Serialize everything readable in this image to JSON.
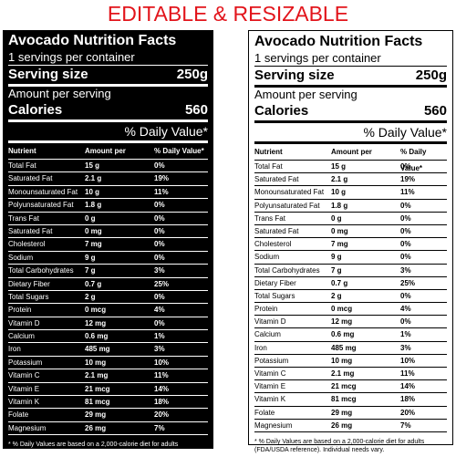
{
  "header": {
    "title": "EDITABLE & RESIZABLE"
  },
  "label": {
    "title": "Avocado Nutrition Facts",
    "servings": "1 servings per container",
    "serving_size_label": "Serving size",
    "serving_size": "250g",
    "amount_per": "Amount per serving",
    "calories_label": "Calories",
    "calories": "560",
    "daily_value": "% Daily Value*",
    "columns": [
      "Nutrient",
      "Amount per",
      "% Daily Value*"
    ],
    "rows": [
      [
        "Total Fat",
        "15 g",
        "0%"
      ],
      [
        "Saturated Fat",
        "2.1 g",
        "19%"
      ],
      [
        "Monounsaturated Fat",
        "10 g",
        "11%"
      ],
      [
        "Polyunsaturated Fat",
        "1.8 g",
        "0%"
      ],
      [
        "Trans Fat",
        "0 g",
        "0%"
      ],
      [
        "Saturated Fat",
        "0 mg",
        "0%"
      ],
      [
        "Cholesterol",
        "7 mg",
        "0%"
      ],
      [
        "Sodium",
        "9 g",
        "0%"
      ],
      [
        "Total Carbohydrates",
        "7 g",
        "3%"
      ],
      [
        "Dietary Fiber",
        "0.7 g",
        "25%"
      ],
      [
        "Total Sugars",
        "2 g",
        "0%"
      ],
      [
        "Protein",
        "0 mcg",
        "4%"
      ],
      [
        "Vitamin D",
        "12 mg",
        "0%"
      ],
      [
        "Calcium",
        "0.6 mg",
        "1%"
      ],
      [
        "Iron",
        "485 mg",
        "3%"
      ],
      [
        "Potassium",
        "10 mg",
        "10%"
      ],
      [
        "Vitamin C",
        "2.1 mg",
        "11%"
      ],
      [
        "Vitamin E",
        "21 mcg",
        "14%"
      ],
      [
        "Vitamin K",
        "81 mcg",
        "18%"
      ],
      [
        "Folate",
        "29 mg",
        "20%"
      ],
      [
        "Magnesium",
        "26 mg",
        "7%"
      ]
    ],
    "footnote": "* % Daily Values are based on a 2,000-calorie diet for adults (FDA/USDA reference). Individual needs vary."
  }
}
